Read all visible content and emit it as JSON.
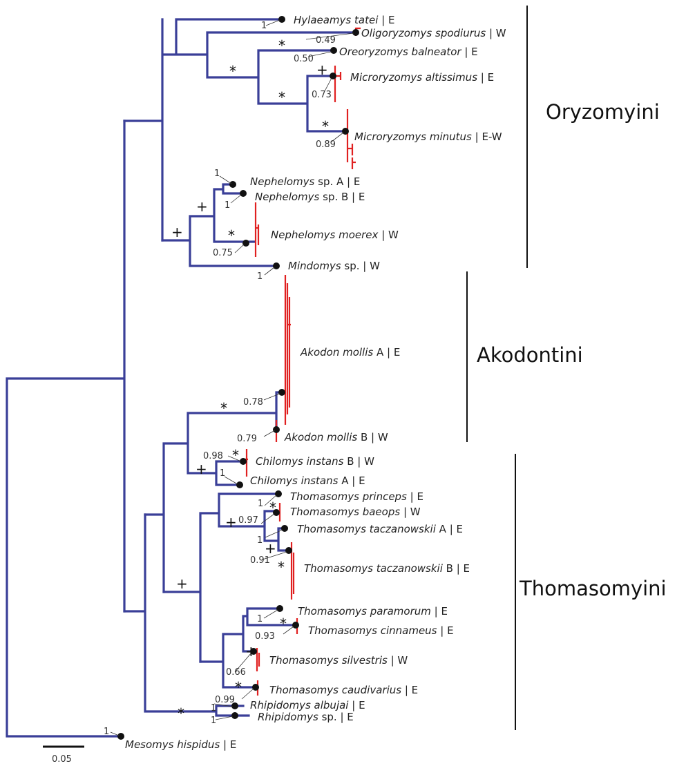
{
  "taxa": [
    {
      "genus": "Hylaeamys tatei",
      "rest": " | E"
    },
    {
      "genus": "Oligoryzomys spodiurus",
      "rest": " | W"
    },
    {
      "genus": "Oreoryzomys balneator",
      "rest": " | E"
    },
    {
      "genus": "Microryzomys altissimus",
      "rest": " | E"
    },
    {
      "genus": "Microryzomys minutus",
      "rest": " | E-W"
    },
    {
      "genus": "Nephelomys",
      "rest": " sp. A | E"
    },
    {
      "genus": "Nephelomys",
      "rest": " sp. B | E"
    },
    {
      "genus": "Nephelomys moerex",
      "rest": " | W"
    },
    {
      "genus": "Mindomys",
      "rest": " sp. | W"
    },
    {
      "genus": "Akodon mollis",
      "rest": " A | E"
    },
    {
      "genus": "Akodon mollis",
      "rest": " B | W"
    },
    {
      "genus": "Chilomys instans",
      "rest": " B | W"
    },
    {
      "genus": "Chilomys instans",
      "rest": " A | E"
    },
    {
      "genus": "Thomasomys princeps",
      "rest": " | E"
    },
    {
      "genus": "Thomasomys baeops",
      "rest": " | W"
    },
    {
      "genus": "Thomasomys taczanowskii",
      "rest": " A | E"
    },
    {
      "genus": "Thomasomys taczanowskii",
      "rest": " B | E"
    },
    {
      "genus": "Thomasomys paramorum",
      "rest": " | E"
    },
    {
      "genus": "Thomasomys cinnameus",
      "rest": " | E"
    },
    {
      "genus": "Thomasomys silvestris",
      "rest": " | W"
    },
    {
      "genus": "Thomasomys caudivarius",
      "rest": " | E"
    },
    {
      "genus": "Rhipidomys albujai",
      "rest": " | E"
    },
    {
      "genus": "Rhipidomys",
      "rest": " sp. | E"
    },
    {
      "genus": "Mesomys hispidus",
      "rest": " | E"
    }
  ],
  "support_values": [
    "1",
    "0.49",
    "0.50",
    "0.73",
    "0.89",
    "1",
    "1",
    "0.75",
    "1",
    "0.78",
    "0.79",
    "0.98",
    "1",
    "1",
    "0.97",
    "1",
    "0.91",
    "1",
    "0.93",
    "0.66",
    "0.99",
    "1",
    "1",
    "1"
  ],
  "markers": {
    "star": "*",
    "plus": "+"
  },
  "clades": [
    "Oryzomyini",
    "Akodontini",
    "Thomasomyini"
  ],
  "scale_bar": {
    "label": "0.05"
  },
  "colors": {
    "branch": "#3a3f98",
    "intraspecific": "#e02020"
  }
}
